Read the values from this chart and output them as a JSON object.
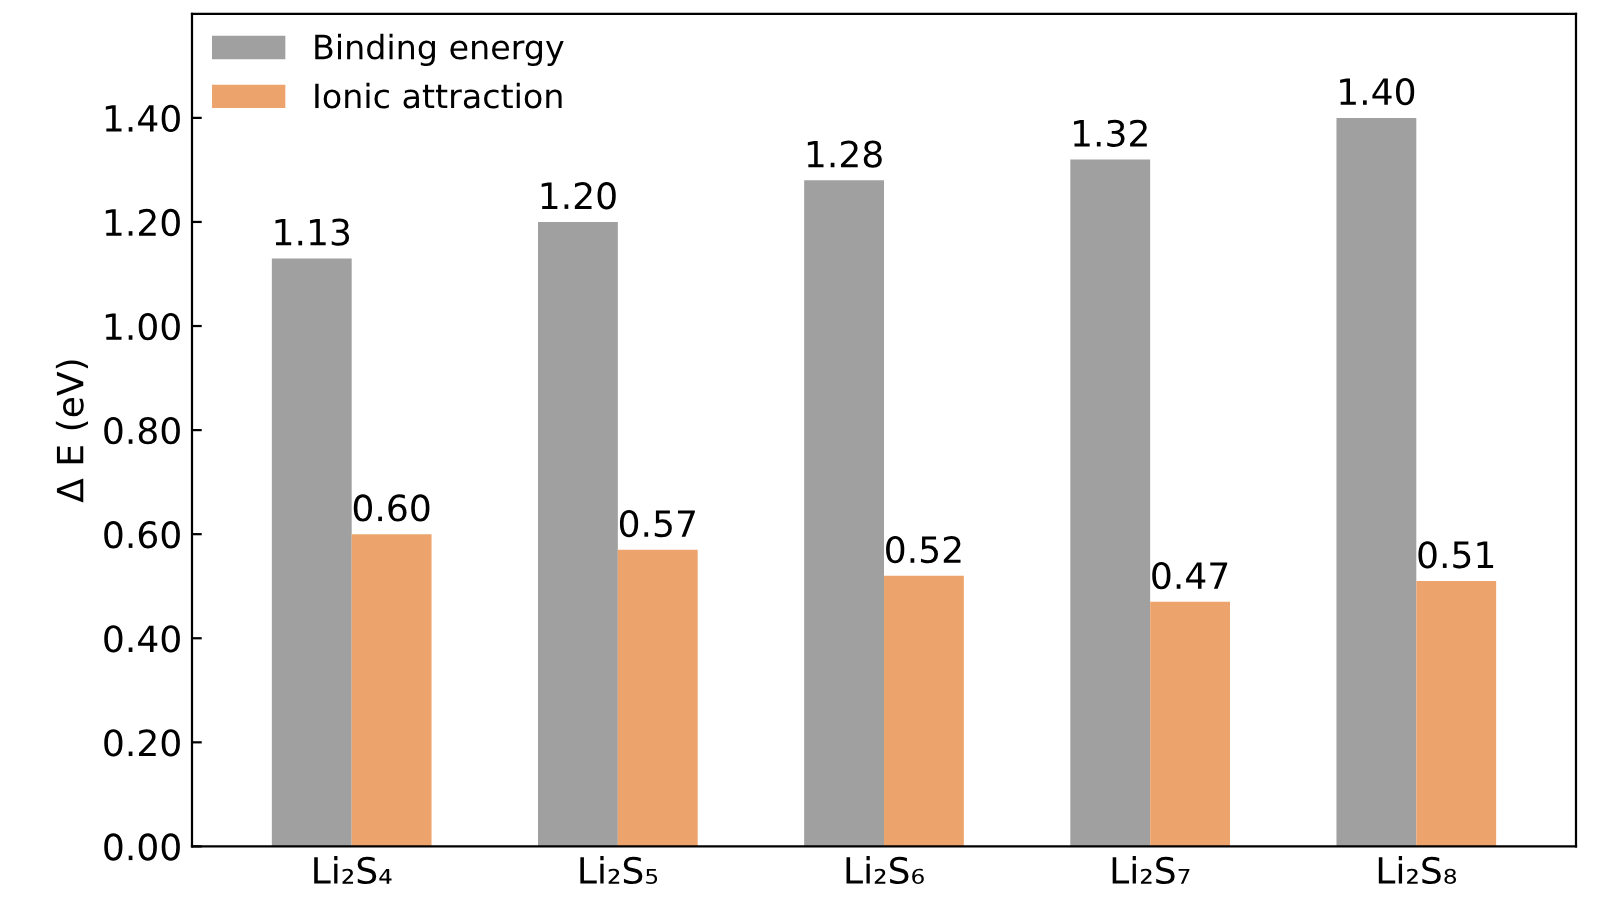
{
  "chart_data": {
    "type": "bar",
    "ylabel": "Δ E (eV)",
    "categories": [
      "Li₂S₄",
      "Li₂S₅",
      "Li₂S₆",
      "Li₂S₇",
      "Li₂S₈"
    ],
    "series": [
      {
        "name": "Binding energy",
        "color": "#a0a0a0",
        "values": [
          1.13,
          1.2,
          1.28,
          1.32,
          1.4
        ],
        "value_labels": [
          "1.13",
          "1.20",
          "1.28",
          "1.32",
          "1.40"
        ]
      },
      {
        "name": "Ionic attraction",
        "color": "#eda46c",
        "values": [
          0.6,
          0.57,
          0.52,
          0.47,
          0.51
        ],
        "value_labels": [
          "0.60",
          "0.57",
          "0.52",
          "0.47",
          "0.51"
        ]
      }
    ],
    "ylim": [
      0,
      1.6
    ],
    "yticks": [
      {
        "value": 0,
        "label": "0.00"
      },
      {
        "value": 0.2,
        "label": "0.20"
      },
      {
        "value": 0.4,
        "label": "0.40"
      },
      {
        "value": 0.6,
        "label": "0.60"
      },
      {
        "value": 0.8,
        "label": "0.80"
      },
      {
        "value": 1.0,
        "label": "1.00"
      },
      {
        "value": 1.2,
        "label": "1.20"
      },
      {
        "value": 1.4,
        "label": "1.40"
      }
    ],
    "legend": "top left",
    "grid": false
  }
}
